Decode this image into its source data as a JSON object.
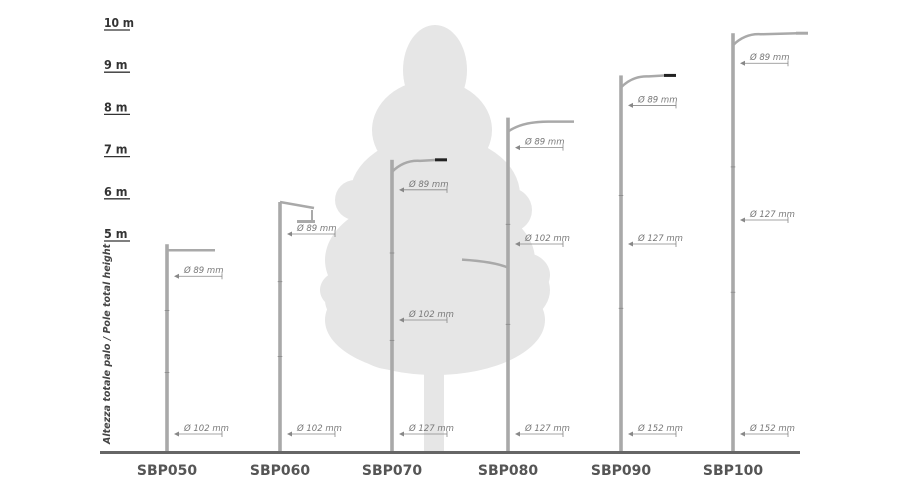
{
  "axis": {
    "title": "Altezza totale palo / Pole total height",
    "height_labels": [
      "5 m",
      "6 m",
      "7 m",
      "8 m",
      "9 m",
      "10 m"
    ]
  },
  "poles": [
    {
      "name": "SBP050",
      "height_m": 4.9,
      "arm": "single-short",
      "diameters": [
        {
          "label": "Ø 89 mm"
        },
        {
          "label": "Ø 102 mm"
        }
      ]
    },
    {
      "name": "SBP060",
      "height_m": 5.9,
      "arm": "hook",
      "diameters": [
        {
          "label": "Ø 89 mm"
        },
        {
          "label": "Ø 102 mm"
        }
      ]
    },
    {
      "name": "SBP070",
      "height_m": 6.9,
      "arm": "curved",
      "diameters": [
        {
          "label": "Ø 89 mm"
        },
        {
          "label": "Ø 102 mm"
        },
        {
          "label": "Ø 127 mm"
        }
      ]
    },
    {
      "name": "SBP080",
      "height_m": 7.9,
      "arm": "double",
      "diameters": [
        {
          "label": "Ø 89 mm"
        },
        {
          "label": "Ø 102 mm"
        },
        {
          "label": "Ø 127 mm"
        }
      ]
    },
    {
      "name": "SBP090",
      "height_m": 8.9,
      "arm": "curved",
      "diameters": [
        {
          "label": "Ø 89 mm"
        },
        {
          "label": "Ø 127 mm"
        },
        {
          "label": "Ø 152 mm"
        }
      ]
    },
    {
      "name": "SBP100",
      "height_m": 9.9,
      "arm": "curved-long",
      "diameters": [
        {
          "label": "Ø 89 mm"
        },
        {
          "label": "Ø 127 mm"
        },
        {
          "label": "Ø 152 mm"
        }
      ]
    }
  ],
  "colors": {
    "pole": "#a9a9a9",
    "tree": "#e6e6e6",
    "ground": "#666666",
    "text": "#555555"
  }
}
